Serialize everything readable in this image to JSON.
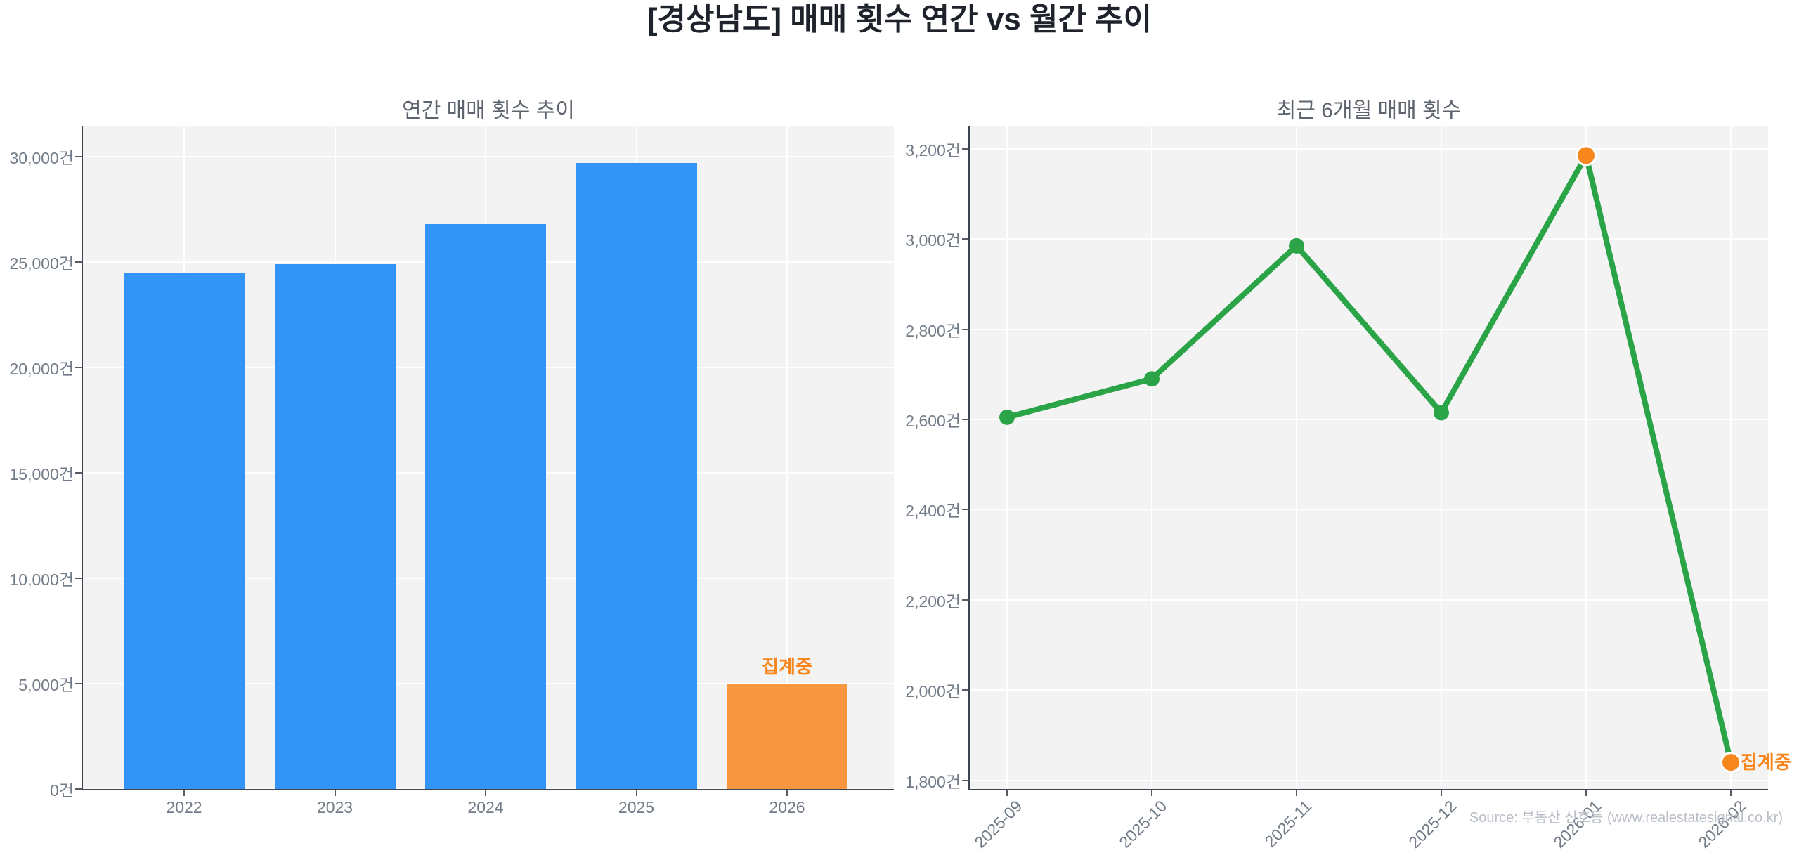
{
  "title": "[경상남도] 매매 횟수 연간 vs 월간 추이",
  "source": "Source: 부동산 신호등 (www.realestatesignal.co.kr)",
  "colors": {
    "bar_blue": "#3194f6",
    "bar_orange": "#f99740",
    "line_green": "#2aa447",
    "marker_green": "#2aa447",
    "marker_orange": "#f7861c",
    "annotation_orange": "#f7861c",
    "plot_background": "#f3f3f4",
    "grid": "#ffffff",
    "spine": "#3e4450",
    "tick_text": "#717b87",
    "subplot_title_text": "#5d646e",
    "main_title_text": "#1e222a",
    "source_text": "#b9bec7"
  },
  "chart_data": [
    {
      "type": "bar",
      "title": "연간 매매 횟수 추이",
      "categories": [
        "2022",
        "2023",
        "2024",
        "2025",
        "2026"
      ],
      "values": [
        24500,
        24900,
        26800,
        29700,
        5000
      ],
      "bar_colors": [
        "#3194f6",
        "#3194f6",
        "#3194f6",
        "#3194f6",
        "#f99740"
      ],
      "ytick_values": [
        0,
        5000,
        10000,
        15000,
        20000,
        25000,
        30000
      ],
      "ytick_labels": [
        "0건",
        "5,000건",
        "10,000건",
        "15,000건",
        "20,000건",
        "25,000건",
        "30,000건"
      ],
      "ylim": [
        0,
        31467
      ],
      "grid": true,
      "legend": "none",
      "annotation": {
        "text": "집계중",
        "category": "2026"
      }
    },
    {
      "type": "line",
      "title": "최근 6개월 매매 횟수",
      "categories": [
        "2025-09",
        "2025-10",
        "2025-11",
        "2025-12",
        "2026-01",
        "2026-02"
      ],
      "values": [
        2605,
        2690,
        2985,
        2615,
        3185,
        1840
      ],
      "marker_colors": [
        "#2aa447",
        "#2aa447",
        "#2aa447",
        "#2aa447",
        "#f7861c",
        "#f7861c"
      ],
      "line_color": "#2aa447",
      "ytick_values": [
        1800,
        2000,
        2200,
        2400,
        2600,
        2800,
        3000,
        3200
      ],
      "ytick_labels": [
        "1,800건",
        "2,000건",
        "2,200건",
        "2,400건",
        "2,600건",
        "2,800건",
        "3,000건",
        "3,200건"
      ],
      "ylim": [
        1781,
        3251
      ],
      "grid": true,
      "legend": "none",
      "annotation": {
        "text": "집계중",
        "category": "2026-02"
      }
    }
  ]
}
